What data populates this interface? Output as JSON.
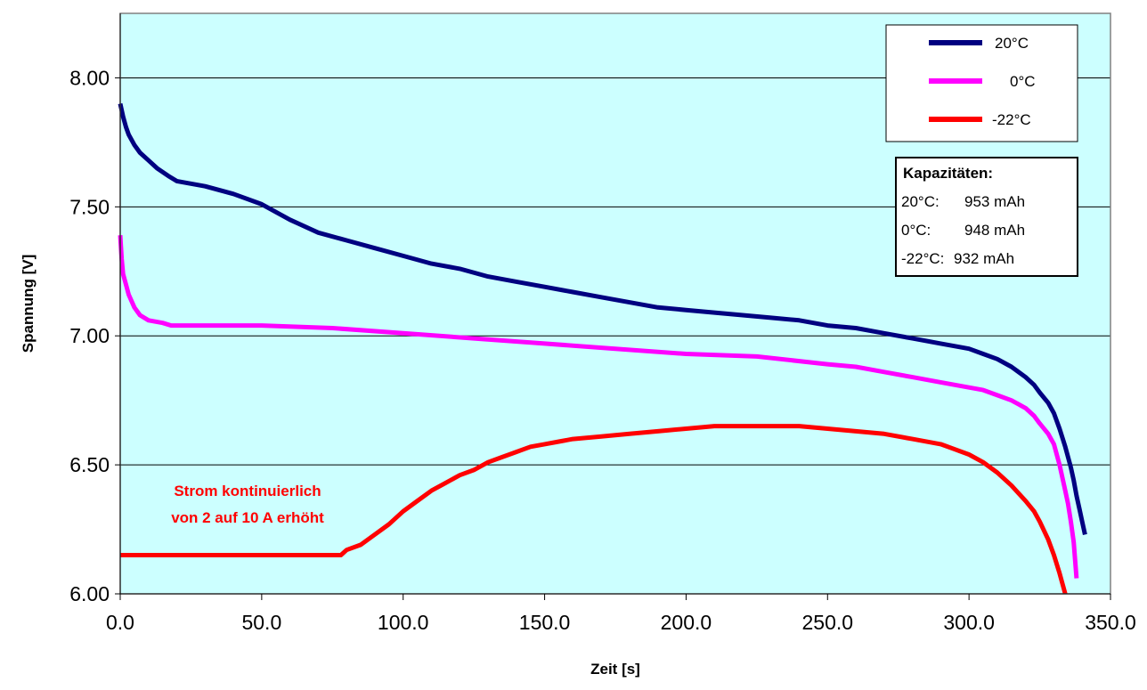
{
  "chart_data": {
    "type": "line",
    "title": "",
    "xlabel": "Zeit [s]",
    "ylabel": "Spannung [V]",
    "xlim": [
      0,
      350
    ],
    "ylim": [
      6.0,
      8.25
    ],
    "x_ticks": [
      0,
      50,
      100,
      150,
      200,
      250,
      300,
      350
    ],
    "x_tick_labels": [
      "0.0",
      "50.0",
      "100.0",
      "150.0",
      "200.0",
      "250.0",
      "300.0",
      "350.0"
    ],
    "y_ticks": [
      6.0,
      6.5,
      7.0,
      7.5,
      8.0
    ],
    "y_tick_labels": [
      "6.00",
      "6.50",
      "7.00",
      "7.50",
      "8.00"
    ],
    "grid": "horizontal",
    "plot_background": "#ccffff",
    "legend_position": "top-right",
    "series": [
      {
        "name": "20°C",
        "color": "#000080",
        "points": [
          [
            0,
            7.9
          ],
          [
            1,
            7.85
          ],
          [
            2,
            7.81
          ],
          [
            3,
            7.78
          ],
          [
            5,
            7.74
          ],
          [
            7,
            7.71
          ],
          [
            10,
            7.68
          ],
          [
            13,
            7.65
          ],
          [
            17,
            7.62
          ],
          [
            20,
            7.6
          ],
          [
            25,
            7.59
          ],
          [
            30,
            7.58
          ],
          [
            40,
            7.55
          ],
          [
            50,
            7.51
          ],
          [
            60,
            7.45
          ],
          [
            70,
            7.4
          ],
          [
            80,
            7.37
          ],
          [
            90,
            7.34
          ],
          [
            100,
            7.31
          ],
          [
            110,
            7.28
          ],
          [
            120,
            7.26
          ],
          [
            130,
            7.23
          ],
          [
            140,
            7.21
          ],
          [
            150,
            7.19
          ],
          [
            160,
            7.17
          ],
          [
            170,
            7.15
          ],
          [
            180,
            7.13
          ],
          [
            190,
            7.11
          ],
          [
            200,
            7.1
          ],
          [
            210,
            7.09
          ],
          [
            220,
            7.08
          ],
          [
            230,
            7.07
          ],
          [
            240,
            7.06
          ],
          [
            250,
            7.04
          ],
          [
            260,
            7.03
          ],
          [
            270,
            7.01
          ],
          [
            280,
            6.99
          ],
          [
            290,
            6.97
          ],
          [
            295,
            6.96
          ],
          [
            300,
            6.95
          ],
          [
            305,
            6.93
          ],
          [
            310,
            6.91
          ],
          [
            315,
            6.88
          ],
          [
            320,
            6.84
          ],
          [
            323,
            6.81
          ],
          [
            325,
            6.78
          ],
          [
            328,
            6.74
          ],
          [
            330,
            6.7
          ],
          [
            332,
            6.64
          ],
          [
            334,
            6.57
          ],
          [
            336,
            6.49
          ],
          [
            337,
            6.44
          ],
          [
            338,
            6.38
          ],
          [
            339,
            6.33
          ],
          [
            340,
            6.28
          ],
          [
            341,
            6.23
          ]
        ]
      },
      {
        "name": "0°C",
        "color": "#ff00ff",
        "points": [
          [
            0,
            7.39
          ],
          [
            0.5,
            7.3
          ],
          [
            1,
            7.24
          ],
          [
            2,
            7.2
          ],
          [
            3,
            7.16
          ],
          [
            5,
            7.11
          ],
          [
            7,
            7.08
          ],
          [
            10,
            7.06
          ],
          [
            15,
            7.05
          ],
          [
            18,
            7.04
          ],
          [
            25,
            7.04
          ],
          [
            50,
            7.04
          ],
          [
            75,
            7.03
          ],
          [
            100,
            7.01
          ],
          [
            125,
            6.99
          ],
          [
            150,
            6.97
          ],
          [
            175,
            6.95
          ],
          [
            200,
            6.93
          ],
          [
            225,
            6.92
          ],
          [
            250,
            6.89
          ],
          [
            260,
            6.88
          ],
          [
            270,
            6.86
          ],
          [
            280,
            6.84
          ],
          [
            290,
            6.82
          ],
          [
            300,
            6.8
          ],
          [
            305,
            6.79
          ],
          [
            310,
            6.77
          ],
          [
            315,
            6.75
          ],
          [
            320,
            6.72
          ],
          [
            323,
            6.69
          ],
          [
            325,
            6.66
          ],
          [
            328,
            6.62
          ],
          [
            330,
            6.58
          ],
          [
            332,
            6.5
          ],
          [
            333,
            6.45
          ],
          [
            334,
            6.4
          ],
          [
            335,
            6.35
          ],
          [
            336,
            6.28
          ],
          [
            337,
            6.2
          ],
          [
            337.5,
            6.13
          ],
          [
            338,
            6.06
          ]
        ]
      },
      {
        "name": "-22°C",
        "color": "#ff0000",
        "points": [
          [
            0,
            6.15
          ],
          [
            20,
            6.15
          ],
          [
            40,
            6.15
          ],
          [
            60,
            6.15
          ],
          [
            78,
            6.15
          ],
          [
            80,
            6.17
          ],
          [
            85,
            6.19
          ],
          [
            90,
            6.23
          ],
          [
            95,
            6.27
          ],
          [
            100,
            6.32
          ],
          [
            105,
            6.36
          ],
          [
            110,
            6.4
          ],
          [
            115,
            6.43
          ],
          [
            120,
            6.46
          ],
          [
            125,
            6.48
          ],
          [
            130,
            6.51
          ],
          [
            135,
            6.53
          ],
          [
            140,
            6.55
          ],
          [
            145,
            6.57
          ],
          [
            150,
            6.58
          ],
          [
            155,
            6.59
          ],
          [
            160,
            6.6
          ],
          [
            170,
            6.61
          ],
          [
            180,
            6.62
          ],
          [
            190,
            6.63
          ],
          [
            200,
            6.64
          ],
          [
            210,
            6.65
          ],
          [
            225,
            6.65
          ],
          [
            240,
            6.65
          ],
          [
            250,
            6.64
          ],
          [
            260,
            6.63
          ],
          [
            270,
            6.62
          ],
          [
            280,
            6.6
          ],
          [
            290,
            6.58
          ],
          [
            295,
            6.56
          ],
          [
            300,
            6.54
          ],
          [
            305,
            6.51
          ],
          [
            310,
            6.47
          ],
          [
            315,
            6.42
          ],
          [
            320,
            6.36
          ],
          [
            323,
            6.32
          ],
          [
            325,
            6.28
          ],
          [
            328,
            6.21
          ],
          [
            330,
            6.15
          ],
          [
            332,
            6.08
          ],
          [
            333,
            6.04
          ],
          [
            334,
            6.0
          ]
        ]
      }
    ],
    "annotations": [
      {
        "lines": [
          "Strom kontinuierlich",
          "von 2 auf 10 A erhöht"
        ],
        "color": "#ff0000"
      }
    ],
    "info_box": {
      "title": "Kapazitäten:",
      "rows": [
        {
          "label": "20°C:",
          "value": "953 mAh"
        },
        {
          "label": "0°C:",
          "value": "948 mAh"
        },
        {
          "label": "-22°C:",
          "value": "932 mAh"
        }
      ]
    }
  }
}
